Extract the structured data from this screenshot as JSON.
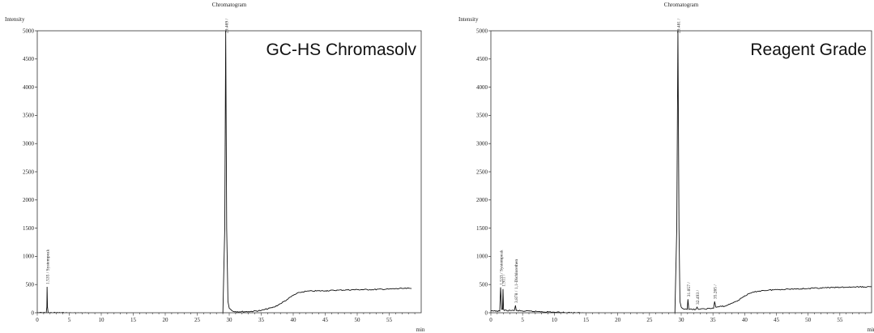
{
  "chart_data": [
    {
      "type": "line",
      "title": "Chromatogram",
      "ylabel": "Intensity",
      "xlabel": "min",
      "panel_label": "GC-HS Chromasolv",
      "xlim": [
        0,
        60
      ],
      "ylim": [
        0,
        5000
      ],
      "x_ticks": [
        0,
        5,
        10,
        15,
        20,
        25,
        30,
        35,
        40,
        45,
        50,
        55
      ],
      "y_ticks": [
        0,
        500,
        1000,
        1500,
        2000,
        2500,
        3000,
        3500,
        4000,
        4500,
        5000
      ],
      "series": [
        {
          "x": [
            0,
            1.4,
            1.5,
            1.535,
            1.6,
            1.7,
            3,
            5,
            8,
            10,
            13,
            15,
            18,
            20,
            23,
            25,
            27,
            29,
            29.3,
            29.45,
            29.6,
            29.8,
            30,
            30.5,
            31,
            33,
            35,
            37,
            38,
            39,
            40,
            41,
            42,
            43,
            45,
            47,
            50,
            52,
            55,
            57,
            58.5
          ],
          "y": [
            0,
            0,
            100,
            460,
            100,
            0,
            0,
            -5,
            -10,
            -15,
            -25,
            -30,
            -40,
            -45,
            -50,
            -50,
            -50,
            -50,
            1500,
            5000,
            1500,
            200,
            80,
            30,
            20,
            20,
            40,
            100,
            160,
            230,
            310,
            360,
            380,
            385,
            390,
            400,
            410,
            410,
            420,
            430,
            430
          ]
        }
      ],
      "peaks": [
        {
          "rt": 1.535,
          "label": "1.535 / Systempeak",
          "height": 460
        },
        {
          "rt": 29.469,
          "label": "29.469 /",
          "height": 5000
        }
      ]
    },
    {
      "type": "line",
      "title": "Chromatogram",
      "ylabel": "Intensity",
      "xlabel": "min",
      "panel_label": "Reagent Grade",
      "xlim": [
        0,
        60
      ],
      "ylim": [
        0,
        5000
      ],
      "x_ticks": [
        0,
        5,
        10,
        15,
        20,
        25,
        30,
        35,
        40,
        45,
        50,
        55
      ],
      "y_ticks": [
        0,
        500,
        1000,
        1500,
        2000,
        2500,
        3000,
        3500,
        4000,
        4500,
        5000
      ],
      "series": [
        {
          "x": [
            0,
            1.4,
            1.533,
            1.7,
            1.85,
            1.911,
            2.0,
            2.1,
            3.7,
            3.878,
            4.0,
            5,
            8,
            10,
            13,
            15,
            18,
            20,
            23,
            25,
            27,
            29,
            29.3,
            29.481,
            29.65,
            29.8,
            30,
            30.5,
            30.95,
            31.057,
            31.2,
            32.3,
            32.493,
            32.7,
            35.1,
            35.265,
            35.45,
            37,
            38,
            39,
            40,
            41,
            42,
            43,
            45,
            47,
            50,
            52,
            55,
            57,
            60
          ],
          "y": [
            30,
            30,
            450,
            60,
            60,
            420,
            60,
            40,
            40,
            130,
            40,
            30,
            20,
            10,
            0,
            -10,
            -15,
            -20,
            -25,
            -25,
            -25,
            -25,
            1500,
            5000,
            1500,
            200,
            100,
            60,
            60,
            240,
            60,
            60,
            100,
            60,
            80,
            200,
            100,
            120,
            170,
            220,
            300,
            350,
            380,
            395,
            410,
            420,
            430,
            440,
            450,
            455,
            460
          ]
        }
      ],
      "peaks": [
        {
          "rt": 1.533,
          "label": "1.533 / Systempeak",
          "height": 450
        },
        {
          "rt": 1.911,
          "label": "1.911 /",
          "height": 420
        },
        {
          "rt": 3.878,
          "label": "3.878 / 1,1-Dichlorethen",
          "height": 130
        },
        {
          "rt": 29.481,
          "label": "29.481 /",
          "height": 5000
        },
        {
          "rt": 31.057,
          "label": "31.057 /",
          "height": 240
        },
        {
          "rt": 32.493,
          "label": "32.493 /",
          "height": 100
        },
        {
          "rt": 35.265,
          "label": "35.265 /",
          "height": 200
        }
      ]
    }
  ]
}
